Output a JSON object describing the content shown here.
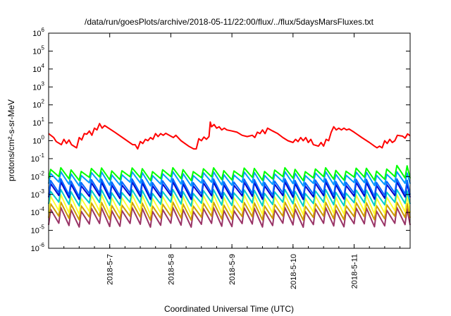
{
  "chart_data": {
    "type": "line",
    "title": "/data/run/goesPlots/archive/2018-05-11/22:00/flux/../flux/5daysMarsFluxes.txt",
    "xlabel": "Coordinated Universal Time (UTC)",
    "ylabel": "protons/cm²-s-sr-MeV",
    "yscale": "log",
    "ylim": [
      1e-06,
      1000000.0
    ],
    "xlim": [
      "2018-05-06 00:00",
      "2018-05-11 22:00"
    ],
    "y_tick_labels": [
      {
        "base": "10",
        "exp": "6",
        "value": 1000000.0
      },
      {
        "base": "10",
        "exp": "5",
        "value": 100000.0
      },
      {
        "base": "10",
        "exp": "4",
        "value": 10000.0
      },
      {
        "base": "10",
        "exp": "3",
        "value": 1000.0
      },
      {
        "base": "10",
        "exp": "2",
        "value": 100.0
      },
      {
        "base": "10",
        "exp": "1",
        "value": 10.0
      },
      {
        "base": "10",
        "exp": "0",
        "value": 1.0
      },
      {
        "base": "10",
        "exp": "-1",
        "value": 0.1
      },
      {
        "base": "10",
        "exp": "-2",
        "value": 0.01
      },
      {
        "base": "10",
        "exp": "-3",
        "value": 0.001
      },
      {
        "base": "10",
        "exp": "-4",
        "value": 0.0001
      },
      {
        "base": "10",
        "exp": "-5",
        "value": 1e-05
      },
      {
        "base": "10",
        "exp": "-6",
        "value": 1e-06
      }
    ],
    "x_tick_labels": [
      {
        "label": "2018-5-7",
        "value": "2018-05-07 00:00"
      },
      {
        "label": "2018-5-8",
        "value": "2018-05-08 00:00"
      },
      {
        "label": "2018-5-9",
        "value": "2018-05-09 00:00"
      },
      {
        "label": "2018-5-10",
        "value": "2018-05-10 00:00"
      },
      {
        "label": "2018-5-11",
        "value": "2018-05-11 00:00"
      }
    ],
    "series": [
      {
        "color": "#ff0000",
        "points": [
          [
            "2018-05-06 00:00",
            2.5
          ],
          [
            "2018-05-06 02:00",
            1.5
          ],
          [
            "2018-05-06 03:00",
            0.9
          ],
          [
            "2018-05-06 05:00",
            0.6
          ],
          [
            "2018-05-06 06:00",
            1.2
          ],
          [
            "2018-05-06 07:00",
            0.7
          ],
          [
            "2018-05-06 08:00",
            1.1
          ],
          [
            "2018-05-06 09:00",
            0.6
          ],
          [
            "2018-05-06 11:00",
            0.4
          ],
          [
            "2018-05-06 12:00",
            1.5
          ],
          [
            "2018-05-06 13:00",
            1.1
          ],
          [
            "2018-05-06 14:00",
            2.5
          ],
          [
            "2018-05-06 15:00",
            2.3
          ],
          [
            "2018-05-06 16:00",
            3.5
          ],
          [
            "2018-05-06 17:00",
            2.0
          ],
          [
            "2018-05-06 18:00",
            5.0
          ],
          [
            "2018-05-06 19:00",
            4.0
          ],
          [
            "2018-05-06 20:00",
            9.0
          ],
          [
            "2018-05-06 21:00",
            5.0
          ],
          [
            "2018-05-06 22:00",
            7.0
          ],
          [
            "2018-05-07 02:00",
            3.0
          ],
          [
            "2018-05-07 06:00",
            1.2
          ],
          [
            "2018-05-07 09:00",
            0.6
          ],
          [
            "2018-05-07 10:00",
            0.6
          ],
          [
            "2018-05-07 11:00",
            0.35
          ],
          [
            "2018-05-07 12:00",
            0.9
          ],
          [
            "2018-05-07 13:00",
            0.7
          ],
          [
            "2018-05-07 14:00",
            1.2
          ],
          [
            "2018-05-07 15:00",
            1.0
          ],
          [
            "2018-05-07 16:00",
            1.5
          ],
          [
            "2018-05-07 17:00",
            1.2
          ],
          [
            "2018-05-07 18:00",
            2.5
          ],
          [
            "2018-05-07 19:00",
            1.7
          ],
          [
            "2018-05-07 20:00",
            2.5
          ],
          [
            "2018-05-07 21:00",
            2.0
          ],
          [
            "2018-05-07 22:00",
            2.6
          ],
          [
            "2018-05-08 01:00",
            1.5
          ],
          [
            "2018-05-08 02:00",
            2.0
          ],
          [
            "2018-05-08 04:00",
            1.0
          ],
          [
            "2018-05-08 07:00",
            0.5
          ],
          [
            "2018-05-08 09:00",
            0.35
          ],
          [
            "2018-05-08 10:00",
            0.35
          ],
          [
            "2018-05-08 11:00",
            1.3
          ],
          [
            "2018-05-08 12:00",
            1.0
          ],
          [
            "2018-05-08 13:00",
            1.6
          ],
          [
            "2018-05-08 14:00",
            1.2
          ],
          [
            "2018-05-08 15:00",
            1.7
          ],
          [
            "2018-05-08 15:30",
            11.0
          ],
          [
            "2018-05-08 16:00",
            6.0
          ],
          [
            "2018-05-08 17:00",
            8.0
          ],
          [
            "2018-05-08 18:00",
            5.0
          ],
          [
            "2018-05-08 19:00",
            6.0
          ],
          [
            "2018-05-08 20:00",
            4.0
          ],
          [
            "2018-05-08 21:00",
            5.0
          ],
          [
            "2018-05-08 22:00",
            4.0
          ],
          [
            "2018-05-09 00:00",
            3.5
          ],
          [
            "2018-05-09 02:00",
            3.0
          ],
          [
            "2018-05-09 04:00",
            2.0
          ],
          [
            "2018-05-09 06:00",
            1.7
          ],
          [
            "2018-05-09 08:00",
            2.0
          ],
          [
            "2018-05-09 09:00",
            1.5
          ],
          [
            "2018-05-09 10:00",
            3.0
          ],
          [
            "2018-05-09 11:00",
            2.5
          ],
          [
            "2018-05-09 12:00",
            4.0
          ],
          [
            "2018-05-09 13:00",
            2.5
          ],
          [
            "2018-05-09 14:00",
            5.0
          ],
          [
            "2018-05-09 16:00",
            3.5
          ],
          [
            "2018-05-09 18:00",
            2.5
          ],
          [
            "2018-05-09 20:00",
            1.5
          ],
          [
            "2018-05-09 22:00",
            1.0
          ],
          [
            "2018-05-10 00:00",
            0.8
          ],
          [
            "2018-05-10 01:00",
            1.2
          ],
          [
            "2018-05-10 02:00",
            0.9
          ],
          [
            "2018-05-10 03:00",
            1.5
          ],
          [
            "2018-05-10 04:00",
            1.0
          ],
          [
            "2018-05-10 05:00",
            1.5
          ],
          [
            "2018-05-10 06:00",
            0.8
          ],
          [
            "2018-05-10 07:00",
            1.2
          ],
          [
            "2018-05-10 08:00",
            0.6
          ],
          [
            "2018-05-10 10:00",
            0.5
          ],
          [
            "2018-05-10 11:00",
            0.8
          ],
          [
            "2018-05-10 12:00",
            0.5
          ],
          [
            "2018-05-10 13:00",
            1.2
          ],
          [
            "2018-05-10 14:00",
            1.0
          ],
          [
            "2018-05-10 15:00",
            3.0
          ],
          [
            "2018-05-10 16:00",
            6.0
          ],
          [
            "2018-05-10 17:00",
            4.0
          ],
          [
            "2018-05-10 18:00",
            5.0
          ],
          [
            "2018-05-10 19:00",
            4.0
          ],
          [
            "2018-05-10 20:00",
            5.0
          ],
          [
            "2018-05-10 21:00",
            4.0
          ],
          [
            "2018-05-10 22:00",
            4.5
          ],
          [
            "2018-05-11 00:00",
            3.0
          ],
          [
            "2018-05-11 03:00",
            1.5
          ],
          [
            "2018-05-11 06:00",
            0.8
          ],
          [
            "2018-05-11 08:00",
            0.5
          ],
          [
            "2018-05-11 09:00",
            0.4
          ],
          [
            "2018-05-11 10:00",
            0.5
          ],
          [
            "2018-05-11 11:00",
            0.4
          ],
          [
            "2018-05-11 12:00",
            1.0
          ],
          [
            "2018-05-11 13:00",
            0.7
          ],
          [
            "2018-05-11 14:00",
            1.2
          ],
          [
            "2018-05-11 15:00",
            0.8
          ],
          [
            "2018-05-11 16:00",
            1.0
          ],
          [
            "2018-05-11 17:00",
            2.0
          ],
          [
            "2018-05-11 19:00",
            1.8
          ],
          [
            "2018-05-11 20:00",
            1.4
          ],
          [
            "2018-05-11 21:00",
            2.4
          ],
          [
            "2018-05-11 22:00",
            1.9
          ]
        ]
      },
      {
        "color": "#00ff00",
        "pattern": "sawtooth",
        "period_hours": 4,
        "low": 0.008,
        "high": 0.025,
        "end_high": 0.04
      },
      {
        "color": "#0099ff",
        "pattern": "sawtooth",
        "period_hours": 4,
        "low": 0.004,
        "high": 0.015
      },
      {
        "color": "#0066ff",
        "pattern": "sawtooth",
        "period_hours": 4,
        "low": 0.001,
        "high": 0.006
      },
      {
        "color": "#0000cc",
        "pattern": "sawtooth",
        "period_hours": 4,
        "low": 0.0007,
        "high": 0.004
      },
      {
        "color": "#00cccc",
        "pattern": "sawtooth",
        "period_hours": 4,
        "low": 0.0003,
        "high": 0.0015
      },
      {
        "color": "#ffff33",
        "pattern": "sawtooth",
        "period_hours": 4,
        "low": 0.0001,
        "high": 0.0008
      },
      {
        "color": "#cc9900",
        "pattern": "sawtooth",
        "period_hours": 4,
        "low": 5e-05,
        "high": 0.0003
      },
      {
        "color": "#993366",
        "pattern": "sawtooth",
        "period_hours": 4,
        "low": 2e-05,
        "high": 0.00015
      }
    ]
  }
}
